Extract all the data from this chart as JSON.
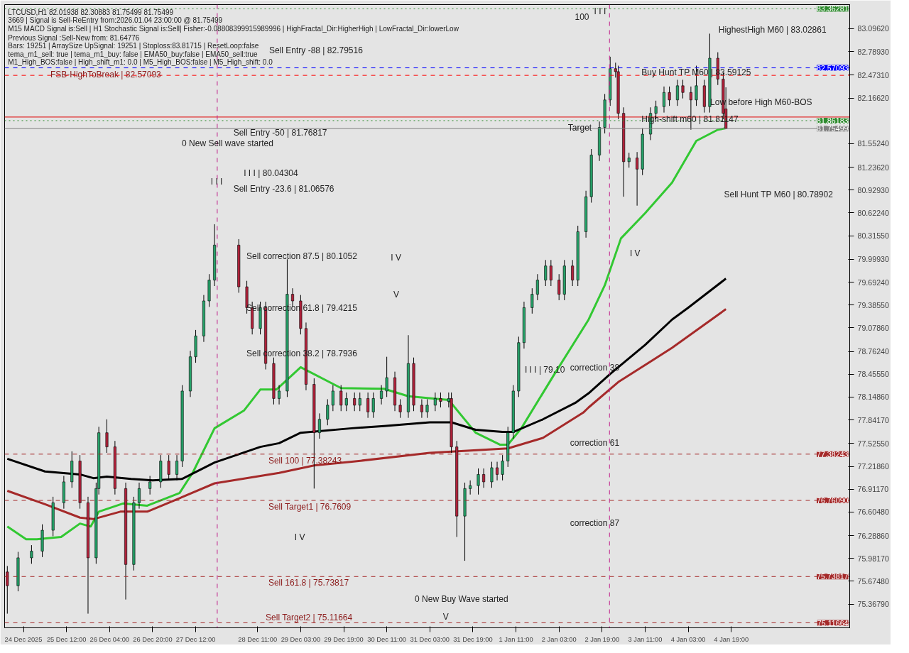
{
  "chart_data": {
    "type": "candlestick",
    "x": [
      "2025-12-24T14:00",
      "2025-12-24T18:00",
      "2025-12-24T23:00",
      "2025-12-25T03:00",
      "2025-12-25T07:00",
      "2025-12-25T11:00",
      "2025-12-25T14:00",
      "2025-12-25T17:00",
      "2025-12-25T20:00",
      "2025-12-25T23:00",
      "2025-12-26T00:00",
      "2025-12-26T03:00",
      "2025-12-26T06:00",
      "2025-12-26T10:00",
      "2025-12-26T13:00",
      "2025-12-26T15:00",
      "2025-12-26T19:00",
      "2025-12-26T23:00",
      "2025-12-27T02:00",
      "2025-12-27T05:00",
      "2025-12-27T07:00",
      "2025-12-27T10:00",
      "2025-12-27T12:00",
      "2025-12-27T15:00",
      "2025-12-27T17:00",
      "2025-12-27T19:00",
      "2025-12-28T04:00",
      "2025-12-28T07:00",
      "2025-12-28T09:00",
      "2025-12-28T12:00",
      "2025-12-28T14:00",
      "2025-12-28T17:00",
      "2025-12-28T19:00",
      "2025-12-28T22:00",
      "2025-12-29T00:00",
      "2025-12-29T03:00",
      "2025-12-29T05:00",
      "2025-12-29T08:00",
      "2025-12-29T10:00",
      "2025-12-29T13:00",
      "2025-12-29T15:00",
      "2025-12-29T18:00",
      "2025-12-29T20:00",
      "2025-12-29T23:00",
      "2025-12-30T01:00",
      "2025-12-30T04:00",
      "2025-12-30T06:00",
      "2025-12-30T09:00",
      "2025-12-30T11:00",
      "2025-12-30T14:00",
      "2025-12-30T16:00",
      "2025-12-30T19:00",
      "2025-12-30T21:00",
      "2025-12-31T00:00",
      "2025-12-31T02:00",
      "2025-12-31T05:00",
      "2025-12-31T07:00",
      "2025-12-31T10:00",
      "2025-12-31T11:00",
      "2025-12-31T13:00",
      "2025-12-31T16:00",
      "2025-12-31T18:00",
      "2025-12-31T21:00",
      "2025-12-31T23:00",
      "2026-01-01T02:00",
      "2026-01-01T04:00",
      "2026-01-01T06:00",
      "2026-01-01T08:00",
      "2026-01-01T10:00",
      "2026-01-01T12:00",
      "2026-01-01T14:00",
      "2026-01-01T17:00",
      "2026-01-01T19:00",
      "2026-01-01T22:00",
      "2026-01-02T00:00",
      "2026-01-02T03:00",
      "2026-01-02T05:00",
      "2026-01-02T08:00",
      "2026-01-02T10:00",
      "2026-01-02T13:00",
      "2026-01-02T15:00",
      "2026-01-02T18:00",
      "2026-01-02T20:00",
      "2026-01-02T22:00",
      "2026-01-03T00:00",
      "2026-01-03T01:00",
      "2026-01-03T03:00",
      "2026-01-03T05:00",
      "2026-01-03T08:00",
      "2026-01-03T10:00",
      "2026-01-03T13:00",
      "2026-01-03T15:00",
      "2026-01-03T18:00",
      "2026-01-03T20:00",
      "2026-01-03T23:00",
      "2026-01-04T01:00",
      "2026-01-04T04:00",
      "2026-01-04T06:00",
      "2026-01-04T09:00",
      "2026-01-04T11:00",
      "2026-01-04T14:00",
      "2026-01-04T16:00",
      "2026-01-04T17:00"
    ],
    "ohlc": [
      [
        75.8,
        75.88,
        75.24,
        75.615
      ],
      [
        75.615,
        76.07,
        75.54,
        75.99
      ],
      [
        75.99,
        76.16,
        75.91,
        76.08
      ],
      [
        76.08,
        76.44,
        76.0,
        76.36
      ],
      [
        76.36,
        76.81,
        76.28,
        76.73
      ],
      [
        76.73,
        77.09,
        76.65,
        77.01
      ],
      [
        77.01,
        77.42,
        76.93,
        77.29
      ],
      [
        77.29,
        77.37,
        76.65,
        76.73
      ],
      [
        76.73,
        76.81,
        75.24,
        75.99
      ],
      [
        75.99,
        77.0,
        75.91,
        76.92
      ],
      [
        76.92,
        77.75,
        76.84,
        77.67
      ],
      [
        77.67,
        77.85,
        77.4,
        77.48
      ],
      [
        77.48,
        77.56,
        76.84,
        76.92
      ],
      [
        76.92,
        77.0,
        75.43,
        75.9
      ],
      [
        75.9,
        76.81,
        75.82,
        76.73
      ],
      [
        76.73,
        77.0,
        76.65,
        76.92
      ],
      [
        76.92,
        77.09,
        76.84,
        77.01
      ],
      [
        77.01,
        77.37,
        76.93,
        77.29
      ],
      [
        77.29,
        77.37,
        77.03,
        77.11
      ],
      [
        77.11,
        77.37,
        77.03,
        77.29
      ],
      [
        77.29,
        78.31,
        77.21,
        78.23
      ],
      [
        78.23,
        78.77,
        78.15,
        78.69
      ],
      [
        78.69,
        79.05,
        78.61,
        78.97
      ],
      [
        78.97,
        79.52,
        78.89,
        79.44
      ],
      [
        79.44,
        79.8,
        79.36,
        79.72
      ],
      [
        79.72,
        80.47,
        79.64,
        80.19
      ],
      [
        80.19,
        80.27,
        79.55,
        79.63
      ],
      [
        79.63,
        79.71,
        79.27,
        79.35
      ],
      [
        79.35,
        79.43,
        78.99,
        79.07
      ],
      [
        79.07,
        79.43,
        78.99,
        79.35
      ],
      [
        79.35,
        79.43,
        78.52,
        78.6
      ],
      [
        78.6,
        78.68,
        78.05,
        78.13
      ],
      [
        78.13,
        78.31,
        78.05,
        78.23
      ],
      [
        78.23,
        80.0,
        78.15,
        79.53
      ],
      [
        79.53,
        79.61,
        79.36,
        79.44
      ],
      [
        79.44,
        79.52,
        78.99,
        79.07
      ],
      [
        79.07,
        79.15,
        78.24,
        78.32
      ],
      [
        78.32,
        78.4,
        76.92,
        77.67
      ],
      [
        77.67,
        77.93,
        77.59,
        77.85
      ],
      [
        77.85,
        78.12,
        77.77,
        78.04
      ],
      [
        78.04,
        78.31,
        77.96,
        78.23
      ],
      [
        78.23,
        78.31,
        77.96,
        78.04
      ],
      [
        78.04,
        78.21,
        77.96,
        78.13
      ],
      [
        78.13,
        78.21,
        77.96,
        78.04
      ],
      [
        78.04,
        78.21,
        77.96,
        78.13
      ],
      [
        78.13,
        78.21,
        77.87,
        77.95
      ],
      [
        77.95,
        78.21,
        77.87,
        78.13
      ],
      [
        78.13,
        78.31,
        78.05,
        78.23
      ],
      [
        78.23,
        78.69,
        78.15,
        78.41
      ],
      [
        78.41,
        78.49,
        77.96,
        78.04
      ],
      [
        78.04,
        78.12,
        77.87,
        77.95
      ],
      [
        77.95,
        78.98,
        77.87,
        78.6
      ],
      [
        78.6,
        78.68,
        77.96,
        78.04
      ],
      [
        78.04,
        78.12,
        77.87,
        77.95
      ],
      [
        77.95,
        78.12,
        77.87,
        78.04
      ],
      [
        78.04,
        78.21,
        77.96,
        78.13
      ],
      [
        78.13,
        78.21,
        78.01,
        78.09
      ],
      [
        78.09,
        78.21,
        78.01,
        78.13
      ],
      [
        78.13,
        78.21,
        77.4,
        77.48
      ],
      [
        77.48,
        77.56,
        76.27,
        76.55
      ],
      [
        76.55,
        77.0,
        75.95,
        76.92
      ],
      [
        76.92,
        77.03,
        76.84,
        76.96
      ],
      [
        76.96,
        77.19,
        76.84,
        77.11
      ],
      [
        77.11,
        77.19,
        76.93,
        77.01
      ],
      [
        77.01,
        77.28,
        76.93,
        77.2
      ],
      [
        77.2,
        77.28,
        77.03,
        77.11
      ],
      [
        77.11,
        77.37,
        77.03,
        77.29
      ],
      [
        77.29,
        77.75,
        77.21,
        77.67
      ],
      [
        77.67,
        78.31,
        77.59,
        78.23
      ],
      [
        78.23,
        78.96,
        78.15,
        78.88
      ],
      [
        78.88,
        79.43,
        78.8,
        79.35
      ],
      [
        79.35,
        79.61,
        79.27,
        79.53
      ],
      [
        79.53,
        79.8,
        79.45,
        79.72
      ],
      [
        79.72,
        79.99,
        79.64,
        79.91
      ],
      [
        79.91,
        79.99,
        79.64,
        79.72
      ],
      [
        79.72,
        79.8,
        79.45,
        79.53
      ],
      [
        79.53,
        79.99,
        79.45,
        79.91
      ],
      [
        79.91,
        79.99,
        79.64,
        79.72
      ],
      [
        79.72,
        80.45,
        79.64,
        80.37
      ],
      [
        80.37,
        80.92,
        80.29,
        80.84
      ],
      [
        80.84,
        81.48,
        80.76,
        81.4
      ],
      [
        81.4,
        81.85,
        81.32,
        81.77
      ],
      [
        81.77,
        82.22,
        81.69,
        82.14
      ],
      [
        82.14,
        82.72,
        82.06,
        82.56
      ],
      [
        82.56,
        82.64,
        82.44,
        82.52
      ],
      [
        82.52,
        82.6,
        81.88,
        81.96
      ],
      [
        81.96,
        82.04,
        80.84,
        81.31
      ],
      [
        81.31,
        81.43,
        81.23,
        81.36
      ],
      [
        81.36,
        81.44,
        80.72,
        81.21
      ],
      [
        81.21,
        81.76,
        81.13,
        81.68
      ],
      [
        81.68,
        82.04,
        81.6,
        81.96
      ],
      [
        81.96,
        82.13,
        81.88,
        82.05
      ],
      [
        82.05,
        82.32,
        81.97,
        82.24
      ],
      [
        82.24,
        82.32,
        82.06,
        82.14
      ],
      [
        82.14,
        82.41,
        82.06,
        82.33
      ],
      [
        82.33,
        82.41,
        82.16,
        82.24
      ],
      [
        82.24,
        82.32,
        81.74,
        82.14
      ],
      [
        82.14,
        82.6,
        82.06,
        82.33
      ],
      [
        82.33,
        82.41,
        81.97,
        82.05
      ],
      [
        82.05,
        83.03,
        81.97,
        82.7
      ],
      [
        82.7,
        82.78,
        82.34,
        82.42
      ],
      [
        82.42,
        82.5,
        81.88,
        81.96
      ],
      [
        82.01938,
        82.30883,
        81.75499,
        81.75499
      ]
    ],
    "colors": [
      "#b0213a",
      "#26a269",
      "#26a269",
      "#26a269",
      "#26a269",
      "#26a269",
      "#26a269",
      "#b0213a",
      "#b0213a",
      "#26a269",
      "#26a269",
      "#b0213a",
      "#b0213a",
      "#b0213a",
      "#26a269",
      "#26a269",
      "#26a269",
      "#26a269",
      "#b0213a",
      "#26a269",
      "#26a269",
      "#26a269",
      "#26a269",
      "#26a269",
      "#26a269",
      "#26a269",
      "#b0213a",
      "#b0213a",
      "#b0213a",
      "#26a269",
      "#b0213a",
      "#b0213a",
      "#26a269",
      "#26a269",
      "#b0213a",
      "#b0213a",
      "#b0213a",
      "#b0213a",
      "#26a269",
      "#26a269",
      "#26a269",
      "#b0213a",
      "#26a269",
      "#b0213a",
      "#26a269",
      "#b0213a",
      "#26a269",
      "#26a269",
      "#26a269",
      "#b0213a",
      "#b0213a",
      "#26a269",
      "#b0213a",
      "#b0213a",
      "#26a269",
      "#26a269",
      "#b0213a",
      "#26a269",
      "#b0213a",
      "#b0213a",
      "#26a269",
      "#26a269",
      "#26a269",
      "#b0213a",
      "#26a269",
      "#b0213a",
      "#26a269",
      "#26a269",
      "#26a269",
      "#26a269",
      "#26a269",
      "#26a269",
      "#26a269",
      "#26a269",
      "#b0213a",
      "#b0213a",
      "#26a269",
      "#b0213a",
      "#26a269",
      "#26a269",
      "#26a269",
      "#26a269",
      "#26a269",
      "#26a269",
      "#b0213a",
      "#b0213a",
      "#b0213a",
      "#26a269",
      "#b0213a",
      "#26a269",
      "#26a269",
      "#26a269",
      "#26a269",
      "#b0213a",
      "#26a269",
      "#b0213a",
      "#b0213a",
      "#26a269",
      "#b0213a",
      "#26a269",
      "#b0213a",
      "#b0213a",
      "#b0213a"
    ],
    "series": [
      {
        "type": "line",
        "color": "#32c832",
        "x": [
          "2025-12-24T14:00",
          "2025-12-24T21:00",
          "2025-12-25T01:00",
          "2025-12-25T10:00",
          "2025-12-25T17:00",
          "2025-12-25T21:00",
          "2025-12-26T00:00",
          "2025-12-26T09:00",
          "2025-12-26T18:00",
          "2025-12-27T06:00",
          "2025-12-27T11:00",
          "2025-12-27T19:00",
          "2025-12-28T06:00",
          "2025-12-28T12:00",
          "2025-12-28T18:00",
          "2025-12-29T03:00",
          "2025-12-29T18:00",
          "2025-12-30T10:00",
          "2025-12-30T19:00",
          "2025-12-31T10:00",
          "2025-12-31T20:00",
          "2026-01-01T05:00",
          "2026-01-01T08:00",
          "2026-01-01T13:00",
          "2026-01-02T01:00",
          "2026-01-02T14:00",
          "2026-01-02T20:00",
          "2026-01-03T02:00",
          "2026-01-03T11:00",
          "2026-01-03T21:00",
          "2026-01-04T06:00",
          "2026-01-04T14:00",
          "2026-01-04T17:00"
        ],
        "values": [
          76.41,
          76.24,
          76.24,
          76.27,
          76.45,
          76.41,
          76.61,
          76.72,
          76.69,
          76.86,
          77.14,
          77.73,
          77.97,
          78.25,
          78.25,
          78.55,
          78.27,
          78.26,
          78.16,
          78.11,
          77.67,
          77.51,
          77.51,
          77.73,
          78.44,
          79.19,
          79.65,
          80.28,
          80.62,
          81.03,
          81.59,
          81.74,
          81.76
        ]
      },
      {
        "type": "line",
        "color": "#000000",
        "x": [
          "2025-12-24T14:00",
          "2025-12-25T04:00",
          "2025-12-25T17:00",
          "2025-12-25T22:00",
          "2025-12-26T03:00",
          "2025-12-26T12:00",
          "2025-12-26T20:00",
          "2025-12-27T07:00",
          "2025-12-27T19:00",
          "2025-12-28T12:00",
          "2025-12-28T19:00",
          "2025-12-29T03:00",
          "2025-12-29T22:00",
          "2025-12-30T10:00",
          "2025-12-31T03:00",
          "2025-12-31T11:00",
          "2025-12-31T20:00",
          "2026-01-01T06:00",
          "2026-01-01T10:00",
          "2026-01-01T21:00",
          "2026-01-02T09:00",
          "2026-01-02T14:00",
          "2026-01-02T22:00",
          "2026-01-03T11:00",
          "2026-01-03T21:00",
          "2026-01-04T03:00",
          "2026-01-04T17:00"
        ],
        "values": [
          77.32,
          77.15,
          77.11,
          77.06,
          77.08,
          77.05,
          77.03,
          77.05,
          77.27,
          77.48,
          77.53,
          77.67,
          77.73,
          77.76,
          77.81,
          77.81,
          77.71,
          77.68,
          77.68,
          77.85,
          78.07,
          78.2,
          78.46,
          78.85,
          79.19,
          79.35,
          79.74
        ]
      },
      {
        "type": "line",
        "color": "#a52a2a",
        "x": [
          "2025-12-24T14:00",
          "2025-12-25T04:00",
          "2025-12-25T17:00",
          "2025-12-25T22:00",
          "2025-12-26T08:00",
          "2025-12-26T18:00",
          "2025-12-27T04:00",
          "2025-12-27T19:00",
          "2025-12-28T19:00",
          "2025-12-29T08:00",
          "2025-12-29T22:00",
          "2025-12-31T03:00",
          "2026-01-01T08:00",
          "2026-01-01T21:00",
          "2026-01-02T12:00",
          "2026-01-02T14:00",
          "2026-01-03T01:00",
          "2026-01-03T21:00",
          "2026-01-04T17:00"
        ],
        "values": [
          76.89,
          76.71,
          76.53,
          76.51,
          76.61,
          76.61,
          76.76,
          76.99,
          77.13,
          77.23,
          77.28,
          77.4,
          77.46,
          77.6,
          77.94,
          78.01,
          78.35,
          78.81,
          79.33
        ]
      }
    ],
    "xlim": [
      "2025-12-24T13:00",
      "2026-01-06T15:00"
    ],
    "ylim": [
      75.05,
      83.42
    ],
    "xticks": [
      {
        "value": "2025-12-24T20:00",
        "label": "24 Dec 2025"
      },
      {
        "value": "2025-12-25T12:00",
        "label": "25 Dec 12:00"
      },
      {
        "value": "2025-12-26T04:00",
        "label": "26 Dec 04:00"
      },
      {
        "value": "2025-12-26T20:00",
        "label": "26 Dec 20:00"
      },
      {
        "value": "2025-12-27T12:00",
        "label": "27 Dec 12:00"
      },
      {
        "value": "2025-12-28T11:00",
        "label": "28 Dec 11:00"
      },
      {
        "value": "2025-12-29T03:00",
        "label": "29 Dec 03:00"
      },
      {
        "value": "2025-12-29T19:00",
        "label": "29 Dec 19:00"
      },
      {
        "value": "2025-12-30T11:00",
        "label": "30 Dec 11:00"
      },
      {
        "value": "2025-12-31T03:00",
        "label": "31 Dec 03:00"
      },
      {
        "value": "2025-12-31T19:00",
        "label": "31 Dec 19:00"
      },
      {
        "value": "2026-01-01T11:00",
        "label": "1 Jan 11:00"
      },
      {
        "value": "2026-01-02T03:00",
        "label": "2 Jan 03:00"
      },
      {
        "value": "2026-01-02T19:00",
        "label": "2 Jan 19:00"
      },
      {
        "value": "2026-01-03T11:00",
        "label": "3 Jan 11:00"
      },
      {
        "value": "2026-01-04T03:00",
        "label": "4 Jan 03:00"
      },
      {
        "value": "2026-01-04T19:00",
        "label": "4 Jan 19:00"
      }
    ],
    "yticks": [
      {
        "value": 83.0962,
        "label": "83.09620"
      },
      {
        "value": 82.7893,
        "label": "82.78930"
      },
      {
        "value": 82.4731,
        "label": "82.47310"
      },
      {
        "value": 82.1662,
        "label": "82.16620"
      },
      {
        "value": 81.5524,
        "label": "81.55240"
      },
      {
        "value": 81.2362,
        "label": "81.23620"
      },
      {
        "value": 80.9293,
        "label": "80.92930"
      },
      {
        "value": 80.6224,
        "label": "80.62240"
      },
      {
        "value": 80.3155,
        "label": "80.31550"
      },
      {
        "value": 79.9993,
        "label": "79.99930"
      },
      {
        "value": 79.6924,
        "label": "79.69240"
      },
      {
        "value": 79.3855,
        "label": "79.38550"
      },
      {
        "value": 79.0786,
        "label": "79.07860"
      },
      {
        "value": 78.7624,
        "label": "78.76240"
      },
      {
        "value": 78.4555,
        "label": "78.45550"
      },
      {
        "value": 78.1486,
        "label": "78.14860"
      },
      {
        "value": 77.8417,
        "label": "77.84170"
      },
      {
        "value": 77.5255,
        "label": "77.52550"
      },
      {
        "value": 77.2186,
        "label": "77.21860"
      },
      {
        "value": 76.9117,
        "label": "76.91170"
      },
      {
        "value": 76.6048,
        "label": "76.60480"
      },
      {
        "value": 76.2886,
        "label": "76.28860"
      },
      {
        "value": 75.9817,
        "label": "75.98170"
      },
      {
        "value": 75.6748,
        "label": "75.67480"
      },
      {
        "value": 75.3679,
        "label": "75.36790"
      }
    ],
    "ref_lines": [
      {
        "axis": "y",
        "value": 83.36281,
        "label": "83.36281",
        "color": "#2e8b2e",
        "line_style": "dotted"
      },
      {
        "axis": "y",
        "value": 82.57093,
        "label": "82.57093",
        "color": "#0000ff",
        "line_style": "dashed"
      },
      {
        "axis": "y",
        "value": 82.47,
        "label": null,
        "color": "#ff0000",
        "line_style": "dashed"
      },
      {
        "axis": "y",
        "value": 81.91,
        "label": null,
        "color": "#e00000",
        "line_style": "solid"
      },
      {
        "axis": "y",
        "value": 81.86183,
        "label": "81.86183",
        "color": "#2e8b2e",
        "line_style": "dotted"
      },
      {
        "axis": "y",
        "value": 81.75499,
        "label": "81.75499",
        "color": "#808080",
        "line_style": "solid"
      },
      {
        "axis": "y",
        "value": 77.38243,
        "label": "77.38243",
        "color": "#a52a2a",
        "line_style": "dashed"
      },
      {
        "axis": "y",
        "value": 76.7609,
        "label": "76.76090",
        "color": "#a52a2a",
        "line_style": "dashed"
      },
      {
        "axis": "y",
        "value": 75.73817,
        "label": "75.73817",
        "color": "#a52a2a",
        "line_style": "dashed"
      },
      {
        "axis": "y",
        "value": 75.11664,
        "label": "75.11664",
        "color": "#a52a2a",
        "line_style": "dashed"
      },
      {
        "axis": "x",
        "value": "2025-12-27T20:00",
        "label": null,
        "color": "#c0208a",
        "line_style": "dashed"
      },
      {
        "axis": "x",
        "value": "2026-01-02T21:45",
        "label": null,
        "color": "#c0208a",
        "line_style": "dashed"
      }
    ],
    "annotations": [
      "LTCUSD,H1  82.01938 82.30883 81.75499 81.75499",
      "3669 | Signal is Sell-ReEntry from:2026.01.04 23:00:00 @ 81.75499",
      "M15 MACD Signal is:Sell | H1 Stochastic Signal is:Sell| Fisher:-0.08808399915989996 | HighFractal_Dir:HigherHigh | LowFractal_Dir:lowerLow",
      "Previous Signal :Sell-New from: 81.64776",
      "Bars: 19251 | ArraySize UpSignal: 19251 | Stoploss:83.81715 | ResetLoop:false",
      "tema_m1_sell: true | tema_m1_buy: false | EMA50_buy:false | EMA50_sell:true",
      "M1_High_BOS:false | High_shift_m1: 0.0 | M5_High_BOS:false | M5_High_shift: 0.0",
      "Sell Entry -88 | 82.79516",
      {
        "text": "FSB-HighToBreak | 82.57093",
        "x": "2025-12-25T06:00",
        "y": 82.57093
      },
      "Sell Entry -50 | 81.76817",
      "0 New Sell wave started",
      "I I I | 80.04304",
      "I I I",
      "Sell Entry -23.6 | 81.06576",
      "Sell correction 87.5 | 80.1052",
      "Sell correction 61.8 | 79.4215",
      "Sell correction 38.2 | 78.7936",
      {
        "text": "Sell 100 | 77.38243",
        "x": "2025-12-28T15:00",
        "y": 77.38243
      },
      {
        "text": "Sell Target1 | 76.7609",
        "x": "2025-12-28T15:00",
        "y": 76.7609
      },
      {
        "text": "Sell 161.8 | 75.73817",
        "x": "2025-12-28T15:00",
        "y": 75.73817
      },
      {
        "text": "Sell Target2 | 75.11664",
        "x": "2025-12-28T14:00",
        "y": 75.11664
      },
      "I V",
      "V",
      "I V",
      "I V",
      "I I I | 79.10",
      "correction 38",
      "correction 61",
      "correction 87",
      "0 New Buy Wave started",
      "V",
      "100",
      "Target",
      "I I I",
      "HighestHigh   M60 | 83.02861",
      "Buy Hunt TP M60 | 83.59125",
      "Low before High   M60-BOS",
      "High-shift m60 | 81.81147",
      "Sell Hunt TP M60 | 80.78902"
    ]
  }
}
